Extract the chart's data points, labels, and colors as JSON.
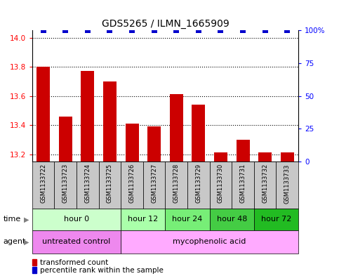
{
  "title": "GDS5265 / ILMN_1665909",
  "samples": [
    "GSM1133722",
    "GSM1133723",
    "GSM1133724",
    "GSM1133725",
    "GSM1133726",
    "GSM1133727",
    "GSM1133728",
    "GSM1133729",
    "GSM1133730",
    "GSM1133731",
    "GSM1133732",
    "GSM1133733"
  ],
  "transformed_count": [
    13.8,
    13.46,
    13.77,
    13.7,
    13.41,
    13.39,
    13.61,
    13.54,
    13.21,
    13.3,
    13.21,
    13.21
  ],
  "percentile_rank": [
    100,
    100,
    100,
    100,
    100,
    100,
    100,
    100,
    100,
    100,
    100,
    100
  ],
  "ylim_left": [
    13.15,
    14.05
  ],
  "ylim_right": [
    0,
    100
  ],
  "yticks_left": [
    13.2,
    13.4,
    13.6,
    13.8,
    14.0
  ],
  "yticks_right": [
    0,
    25,
    50,
    75,
    100
  ],
  "bar_color": "#cc0000",
  "dot_color": "#0000cc",
  "time_groups": [
    {
      "label": "hour 0",
      "start": 0,
      "end": 4,
      "color": "#ccffcc"
    },
    {
      "label": "hour 12",
      "start": 4,
      "end": 6,
      "color": "#aaffaa"
    },
    {
      "label": "hour 24",
      "start": 6,
      "end": 8,
      "color": "#77ee77"
    },
    {
      "label": "hour 48",
      "start": 8,
      "end": 10,
      "color": "#44cc44"
    },
    {
      "label": "hour 72",
      "start": 10,
      "end": 12,
      "color": "#22bb22"
    }
  ],
  "agent_groups": [
    {
      "label": "untreated control",
      "start": 0,
      "end": 4,
      "color": "#ee88ee"
    },
    {
      "label": "mycophenolic acid",
      "start": 4,
      "end": 12,
      "color": "#ffaaff"
    }
  ],
  "legend_bar_label": "transformed count",
  "legend_dot_label": "percentile rank within the sample",
  "time_label": "time",
  "agent_label": "agent",
  "bar_width": 0.6,
  "dot_size": 30,
  "dot_marker": "s",
  "grid_color": "#000000",
  "grid_linestyle": ":",
  "grid_linewidth": 0.8,
  "title_fontsize": 10,
  "tick_fontsize": 7.5,
  "label_fontsize": 8,
  "sample_fontsize": 6,
  "legend_fontsize": 7.5,
  "sample_box_color": "#c8c8c8"
}
